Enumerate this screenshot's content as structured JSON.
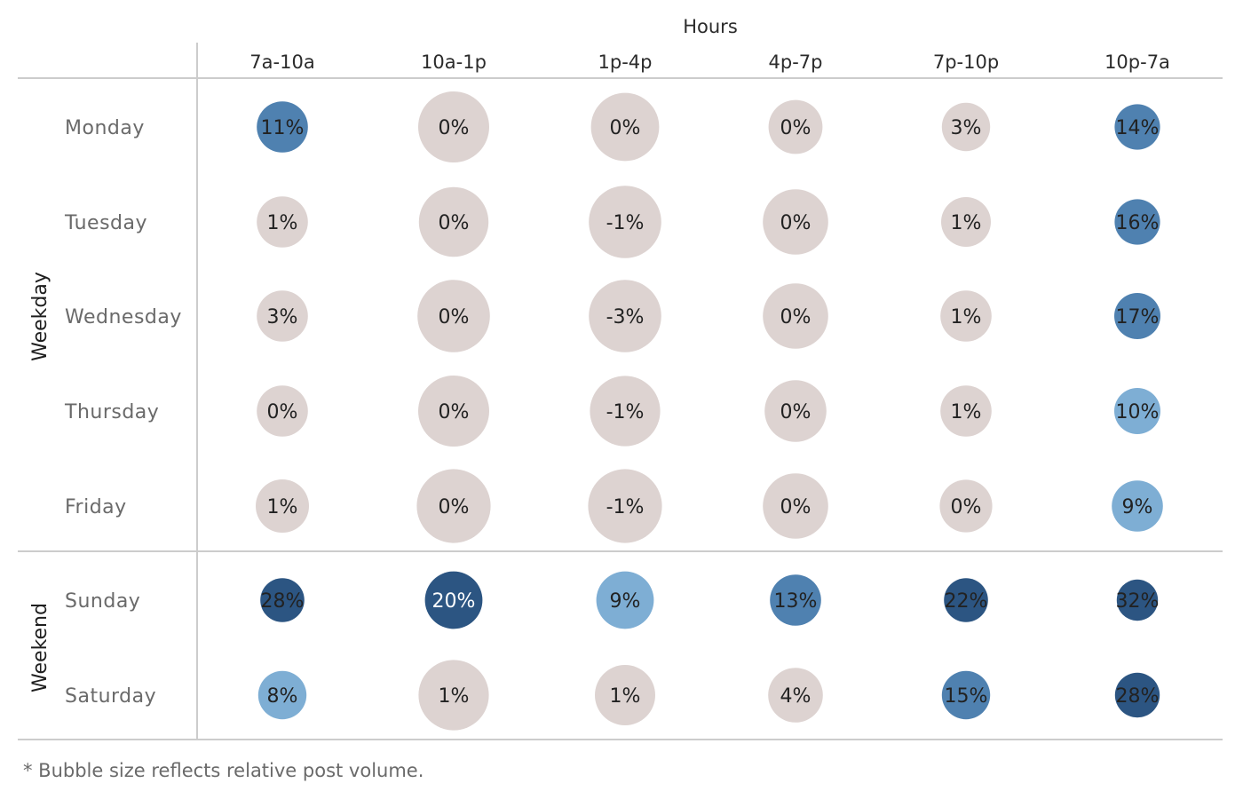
{
  "chart_data": {
    "type": "bubble-matrix",
    "column_title": "Hours",
    "columns": [
      "7a-10a",
      "10a-1p",
      "1p-4p",
      "4p-7p",
      "7p-10p",
      "10p-7a"
    ],
    "groups": [
      {
        "name": "Weekday",
        "rows": [
          "Monday",
          "Tuesday",
          "Wednesday",
          "Thursday",
          "Friday"
        ]
      },
      {
        "name": "Weekend",
        "rows": [
          "Sunday",
          "Saturday"
        ]
      }
    ],
    "rows": [
      "Monday",
      "Tuesday",
      "Wednesday",
      "Thursday",
      "Friday",
      "Sunday",
      "Saturday"
    ],
    "values": [
      [
        11,
        0,
        0,
        0,
        3,
        14
      ],
      [
        1,
        0,
        -1,
        0,
        1,
        16
      ],
      [
        3,
        0,
        -3,
        0,
        1,
        17
      ],
      [
        0,
        0,
        -1,
        0,
        1,
        10
      ],
      [
        1,
        0,
        -1,
        0,
        0,
        9
      ],
      [
        28,
        20,
        9,
        13,
        22,
        32
      ],
      [
        8,
        1,
        1,
        4,
        15,
        28
      ]
    ],
    "labels": [
      [
        "11%",
        "0%",
        "0%",
        "0%",
        "3%",
        "14%"
      ],
      [
        "1%",
        "0%",
        "-1%",
        "0%",
        "1%",
        "16%"
      ],
      [
        "3%",
        "0%",
        "-3%",
        "0%",
        "1%",
        "17%"
      ],
      [
        "0%",
        "0%",
        "-1%",
        "0%",
        "1%",
        "10%"
      ],
      [
        "1%",
        "0%",
        "-1%",
        "0%",
        "0%",
        "9%"
      ],
      [
        "28%",
        "20%",
        "9%",
        "13%",
        "22%",
        "32%"
      ],
      [
        "8%",
        "1%",
        "1%",
        "4%",
        "15%",
        "28%"
      ]
    ],
    "relative_volume": [
      [
        0.72,
        1.0,
        0.96,
        0.76,
        0.68,
        0.64
      ],
      [
        0.72,
        0.98,
        1.02,
        0.92,
        0.7,
        0.64
      ],
      [
        0.72,
        1.02,
        1.02,
        0.92,
        0.72,
        0.65
      ],
      [
        0.72,
        1.0,
        0.99,
        0.87,
        0.72,
        0.65
      ],
      [
        0.75,
        1.04,
        1.04,
        0.92,
        0.74,
        0.72
      ],
      [
        0.62,
        0.81,
        0.81,
        0.72,
        0.62,
        0.58
      ],
      [
        0.68,
        0.99,
        0.85,
        0.77,
        0.68,
        0.63
      ]
    ],
    "colors": {
      "neutral": "#ddd3d1",
      "light_blue": "#7eaed4",
      "mid_blue": "#4f81b0",
      "dark_blue": "#2c5582",
      "line": "#cccccc",
      "text_dark": "#222222",
      "text_light": "#ffffff"
    }
  },
  "footnote": "* Bubble size reflects relative post volume."
}
